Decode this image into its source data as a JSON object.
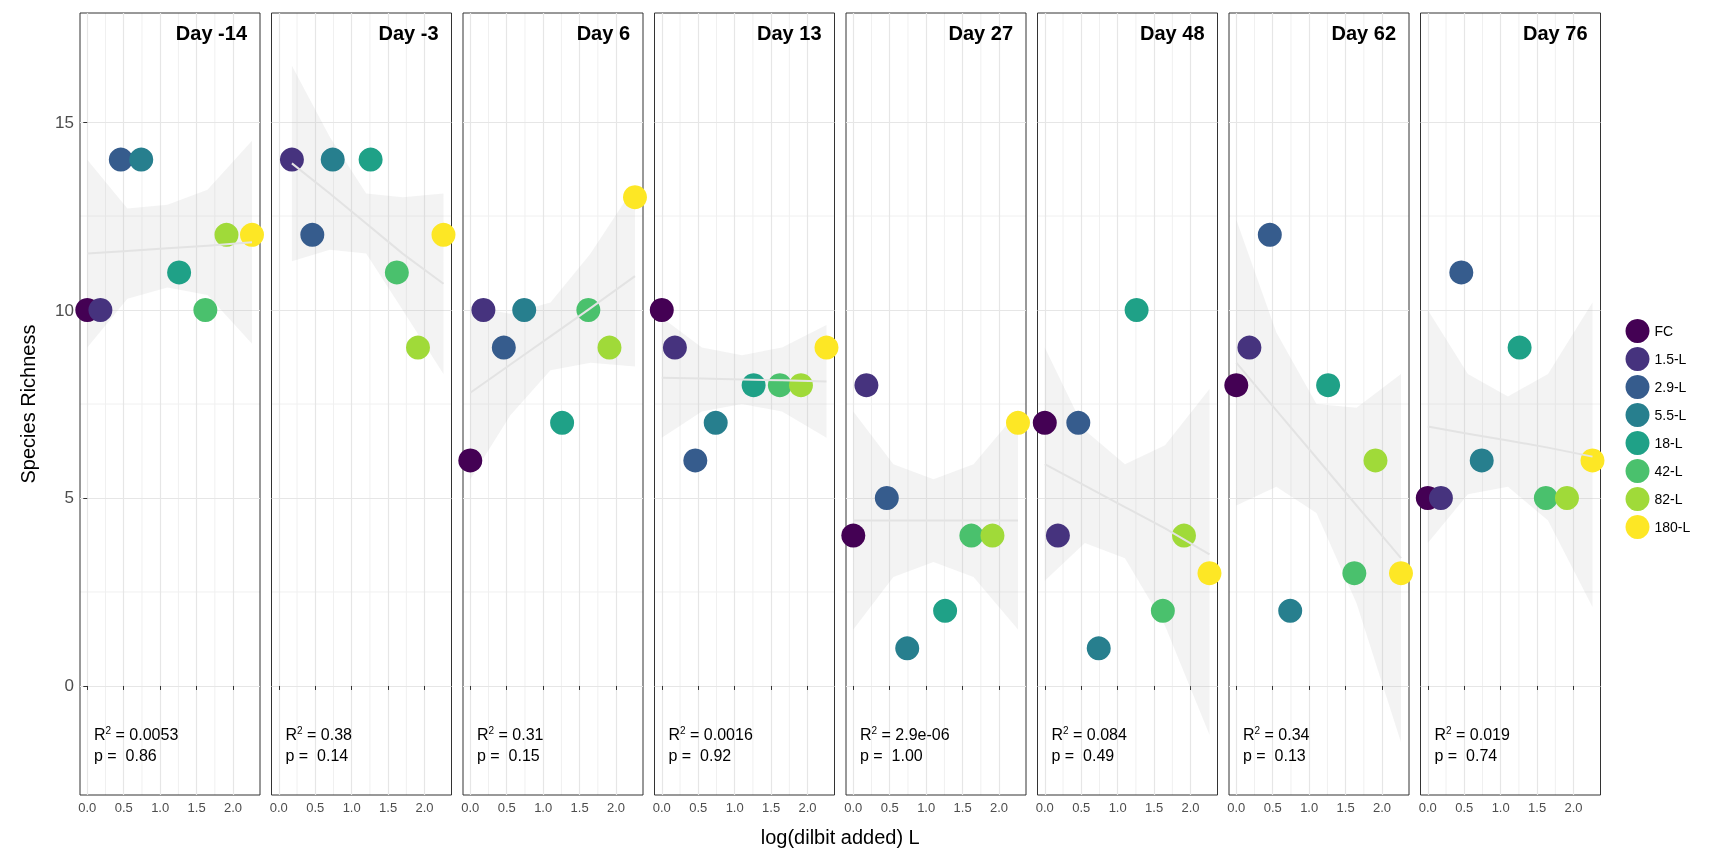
{
  "chart_data": [
    {
      "type": "scatter",
      "title": "Day -14",
      "ylabel": "Species Richness",
      "annotations": [
        "R$^{2}$ = 0.0053",
        "p =  0.86"
      ],
      "xlim": [
        -0.1,
        2.37
      ],
      "ylim": [
        -2.9,
        17.9
      ],
      "xticks": [
        {
          "value": 0,
          "label": "0.0"
        },
        {
          "value": 0.5,
          "label": "0.5"
        },
        {
          "value": 1,
          "label": "1.0"
        },
        {
          "value": 1.5,
          "label": "1.5"
        },
        {
          "value": 2,
          "label": "2.0"
        }
      ],
      "yticks": [
        0,
        5,
        10,
        15
      ],
      "grid": true,
      "marker": "circle",
      "series": [
        {
          "color": "#440154",
          "x": [
            0
          ],
          "values": [
            10
          ]
        },
        {
          "color": "#46337e",
          "x": [
            0.18
          ],
          "values": [
            10
          ]
        },
        {
          "color": "#365c8d",
          "x": [
            0.46
          ],
          "values": [
            14
          ]
        },
        {
          "color": "#277f8e",
          "x": [
            0.74
          ],
          "values": [
            14
          ]
        },
        {
          "color": "#1fa187",
          "x": [
            1.26
          ],
          "values": [
            11
          ]
        },
        {
          "color": "#4ac16d",
          "x": [
            1.62
          ],
          "values": [
            10
          ]
        },
        {
          "color": "#a0da39",
          "x": [
            1.91
          ],
          "values": [
            12
          ]
        },
        {
          "color": "#fde725",
          "x": [
            2.26
          ],
          "values": [
            12
          ]
        },
        {
          "type": "line",
          "marker": "none",
          "color": "#e3e3e3",
          "x": [
            0,
            0.55,
            1.1,
            1.65,
            2.26
          ],
          "values": [
            11.5,
            11.57,
            11.64,
            11.71,
            11.8
          ],
          "lower": [
            9.0,
            10.3,
            10.6,
            10.4,
            9.1
          ],
          "upper": [
            14.0,
            12.7,
            12.8,
            13.2,
            14.5
          ]
        }
      ]
    },
    {
      "type": "scatter",
      "title": "Day -3",
      "annotations": [
        "R$^{2}$ = 0.38",
        "p =  0.14"
      ],
      "xlim": [
        -0.1,
        2.37
      ],
      "ylim": [
        -2.9,
        17.9
      ],
      "xticks": [
        {
          "value": 0,
          "label": "0.0"
        },
        {
          "value": 0.5,
          "label": "0.5"
        },
        {
          "value": 1,
          "label": "1.0"
        },
        {
          "value": 1.5,
          "label": "1.5"
        },
        {
          "value": 2,
          "label": "2.0"
        }
      ],
      "yticks": [
        0,
        5,
        10,
        15
      ],
      "tick_labels": "x",
      "grid": true,
      "marker": "circle",
      "series": [
        {
          "color": "#46337e",
          "x": [
            0.18
          ],
          "values": [
            14
          ]
        },
        {
          "color": "#365c8d",
          "x": [
            0.46
          ],
          "values": [
            12
          ]
        },
        {
          "color": "#277f8e",
          "x": [
            0.74
          ],
          "values": [
            14
          ]
        },
        {
          "color": "#1fa187",
          "x": [
            1.26
          ],
          "values": [
            14
          ]
        },
        {
          "color": "#4ac16d",
          "x": [
            1.62
          ],
          "values": [
            11
          ]
        },
        {
          "color": "#a0da39",
          "x": [
            1.91
          ],
          "values": [
            9
          ]
        },
        {
          "color": "#fde725",
          "x": [
            2.26
          ],
          "values": [
            12
          ]
        },
        {
          "type": "line",
          "marker": "none",
          "color": "#e3e3e3",
          "x": [
            0.18,
            0.7,
            1.2,
            1.7,
            2.26
          ],
          "values": [
            13.9,
            13.1,
            12.3,
            11.5,
            10.7
          ],
          "lower": [
            11.3,
            11.6,
            11.5,
            10.0,
            8.3
          ],
          "upper": [
            16.5,
            14.6,
            13.1,
            13.0,
            13.1
          ]
        }
      ]
    },
    {
      "type": "scatter",
      "title": "Day 6",
      "annotations": [
        "R$^{2}$ = 0.31",
        "p =  0.15"
      ],
      "xlim": [
        -0.1,
        2.37
      ],
      "ylim": [
        -2.9,
        17.9
      ],
      "xticks": [
        {
          "value": 0,
          "label": "0.0"
        },
        {
          "value": 0.5,
          "label": "0.5"
        },
        {
          "value": 1,
          "label": "1.0"
        },
        {
          "value": 1.5,
          "label": "1.5"
        },
        {
          "value": 2,
          "label": "2.0"
        }
      ],
      "yticks": [
        0,
        5,
        10,
        15
      ],
      "tick_labels": "x",
      "grid": true,
      "marker": "circle",
      "series": [
        {
          "color": "#440154",
          "x": [
            0
          ],
          "values": [
            6
          ]
        },
        {
          "color": "#46337e",
          "x": [
            0.18
          ],
          "values": [
            10
          ]
        },
        {
          "color": "#365c8d",
          "x": [
            0.46
          ],
          "values": [
            9
          ]
        },
        {
          "color": "#277f8e",
          "x": [
            0.74
          ],
          "values": [
            10
          ]
        },
        {
          "color": "#1fa187",
          "x": [
            1.26
          ],
          "values": [
            7
          ]
        },
        {
          "color": "#4ac16d",
          "x": [
            1.62
          ],
          "values": [
            10
          ]
        },
        {
          "color": "#a0da39",
          "x": [
            1.91
          ],
          "values": [
            9
          ]
        },
        {
          "color": "#fde725",
          "x": [
            2.26
          ],
          "values": [
            13
          ]
        },
        {
          "type": "line",
          "marker": "none",
          "color": "#e3e3e3",
          "x": [
            0,
            0.55,
            1.1,
            1.65,
            2.26
          ],
          "values": [
            7.8,
            8.55,
            9.3,
            10.05,
            10.9
          ],
          "lower": [
            5.5,
            7.2,
            8.4,
            8.6,
            8.5
          ],
          "upper": [
            10.1,
            9.9,
            10.2,
            11.5,
            13.3
          ]
        }
      ]
    },
    {
      "type": "scatter",
      "title": "Day 13",
      "xlabel": "log(dilbit added) L",
      "annotations": [
        "R$^{2}$ = 0.0016",
        "p =  0.92"
      ],
      "xlim": [
        -0.1,
        2.37
      ],
      "ylim": [
        -2.9,
        17.9
      ],
      "xticks": [
        {
          "value": 0,
          "label": "0.0"
        },
        {
          "value": 0.5,
          "label": "0.5"
        },
        {
          "value": 1,
          "label": "1.0"
        },
        {
          "value": 1.5,
          "label": "1.5"
        },
        {
          "value": 2,
          "label": "2.0"
        }
      ],
      "yticks": [
        0,
        5,
        10,
        15
      ],
      "tick_labels": "x",
      "grid": true,
      "marker": "circle",
      "series": [
        {
          "color": "#440154",
          "x": [
            0
          ],
          "values": [
            10
          ]
        },
        {
          "color": "#46337e",
          "x": [
            0.18
          ],
          "values": [
            9
          ]
        },
        {
          "color": "#365c8d",
          "x": [
            0.46
          ],
          "values": [
            6
          ]
        },
        {
          "color": "#277f8e",
          "x": [
            0.74
          ],
          "values": [
            7
          ]
        },
        {
          "color": "#1fa187",
          "x": [
            1.26
          ],
          "values": [
            8
          ]
        },
        {
          "color": "#4ac16d",
          "x": [
            1.62
          ],
          "values": [
            8
          ]
        },
        {
          "color": "#a0da39",
          "x": [
            1.91
          ],
          "values": [
            8
          ]
        },
        {
          "color": "#fde725",
          "x": [
            2.26
          ],
          "values": [
            9
          ]
        },
        {
          "type": "line",
          "marker": "none",
          "color": "#e3e3e3",
          "x": [
            0,
            0.55,
            1.1,
            1.65,
            2.26
          ],
          "values": [
            8.2,
            8.18,
            8.15,
            8.13,
            8.1
          ],
          "lower": [
            6.6,
            7.3,
            7.5,
            7.3,
            6.6
          ],
          "upper": [
            9.8,
            9.0,
            8.8,
            9.0,
            9.6
          ]
        }
      ]
    },
    {
      "type": "scatter",
      "title": "Day 27",
      "annotations": [
        "R$^{2}$ = 2.9e-06",
        "p =  1.00"
      ],
      "xlim": [
        -0.1,
        2.37
      ],
      "ylim": [
        -2.9,
        17.9
      ],
      "xticks": [
        {
          "value": 0,
          "label": "0.0"
        },
        {
          "value": 0.5,
          "label": "0.5"
        },
        {
          "value": 1,
          "label": "1.0"
        },
        {
          "value": 1.5,
          "label": "1.5"
        },
        {
          "value": 2,
          "label": "2.0"
        }
      ],
      "yticks": [
        0,
        5,
        10,
        15
      ],
      "tick_labels": "x",
      "grid": true,
      "marker": "circle",
      "series": [
        {
          "color": "#440154",
          "x": [
            0
          ],
          "values": [
            4
          ]
        },
        {
          "color": "#46337e",
          "x": [
            0.18
          ],
          "values": [
            8
          ]
        },
        {
          "color": "#365c8d",
          "x": [
            0.46
          ],
          "values": [
            5
          ]
        },
        {
          "color": "#277f8e",
          "x": [
            0.74
          ],
          "values": [
            1
          ]
        },
        {
          "color": "#1fa187",
          "x": [
            1.26
          ],
          "values": [
            2
          ]
        },
        {
          "color": "#4ac16d",
          "x": [
            1.62
          ],
          "values": [
            4
          ]
        },
        {
          "color": "#a0da39",
          "x": [
            1.91
          ],
          "values": [
            4
          ]
        },
        {
          "color": "#fde725",
          "x": [
            2.26
          ],
          "values": [
            7
          ]
        },
        {
          "type": "line",
          "marker": "none",
          "color": "#e3e3e3",
          "x": [
            0,
            0.55,
            1.1,
            1.65,
            2.26
          ],
          "values": [
            4.4,
            4.4,
            4.4,
            4.4,
            4.4
          ],
          "lower": [
            1.5,
            2.9,
            3.3,
            2.9,
            1.5
          ],
          "upper": [
            7.3,
            5.9,
            5.5,
            5.9,
            7.3
          ]
        }
      ]
    },
    {
      "type": "scatter",
      "title": "Day 48",
      "annotations": [
        "R$^{2}$ = 0.084",
        "p =  0.49"
      ],
      "xlim": [
        -0.1,
        2.37
      ],
      "ylim": [
        -2.9,
        17.9
      ],
      "xticks": [
        {
          "value": 0,
          "label": "0.0"
        },
        {
          "value": 0.5,
          "label": "0.5"
        },
        {
          "value": 1,
          "label": "1.0"
        },
        {
          "value": 1.5,
          "label": "1.5"
        },
        {
          "value": 2,
          "label": "2.0"
        }
      ],
      "yticks": [
        0,
        5,
        10,
        15
      ],
      "tick_labels": "x",
      "grid": true,
      "marker": "circle",
      "series": [
        {
          "color": "#440154",
          "x": [
            0
          ],
          "values": [
            7
          ]
        },
        {
          "color": "#46337e",
          "x": [
            0.18
          ],
          "values": [
            4
          ]
        },
        {
          "color": "#365c8d",
          "x": [
            0.46
          ],
          "values": [
            7
          ]
        },
        {
          "color": "#277f8e",
          "x": [
            0.74
          ],
          "values": [
            1
          ]
        },
        {
          "color": "#1fa187",
          "x": [
            1.26
          ],
          "values": [
            10
          ]
        },
        {
          "color": "#4ac16d",
          "x": [
            1.62
          ],
          "values": [
            2
          ]
        },
        {
          "color": "#a0da39",
          "x": [
            1.91
          ],
          "values": [
            4
          ]
        },
        {
          "color": "#fde725",
          "x": [
            2.26
          ],
          "values": [
            3
          ]
        },
        {
          "type": "line",
          "marker": "none",
          "color": "#e3e3e3",
          "x": [
            0,
            0.55,
            1.1,
            1.65,
            2.26
          ],
          "values": [
            5.9,
            5.33,
            4.76,
            4.19,
            3.5
          ],
          "lower": [
            2.8,
            3.8,
            3.4,
            1.6,
            -1.3
          ],
          "upper": [
            9.0,
            6.8,
            5.9,
            6.4,
            7.9
          ]
        }
      ]
    },
    {
      "type": "scatter",
      "title": "Day 62",
      "annotations": [
        "R$^{2}$ = 0.34",
        "p =  0.13"
      ],
      "xlim": [
        -0.1,
        2.37
      ],
      "ylim": [
        -2.9,
        17.9
      ],
      "xticks": [
        {
          "value": 0,
          "label": "0.0"
        },
        {
          "value": 0.5,
          "label": "0.5"
        },
        {
          "value": 1,
          "label": "1.0"
        },
        {
          "value": 1.5,
          "label": "1.5"
        },
        {
          "value": 2,
          "label": "2.0"
        }
      ],
      "yticks": [
        0,
        5,
        10,
        15
      ],
      "tick_labels": "x",
      "grid": true,
      "marker": "circle",
      "series": [
        {
          "color": "#440154",
          "x": [
            0
          ],
          "values": [
            8
          ]
        },
        {
          "color": "#46337e",
          "x": [
            0.18
          ],
          "values": [
            9
          ]
        },
        {
          "color": "#365c8d",
          "x": [
            0.46
          ],
          "values": [
            12
          ]
        },
        {
          "color": "#277f8e",
          "x": [
            0.74
          ],
          "values": [
            2
          ]
        },
        {
          "color": "#1fa187",
          "x": [
            1.26
          ],
          "values": [
            8
          ]
        },
        {
          "color": "#4ac16d",
          "x": [
            1.62
          ],
          "values": [
            3
          ]
        },
        {
          "color": "#a0da39",
          "x": [
            1.91
          ],
          "values": [
            6
          ]
        },
        {
          "color": "#fde725",
          "x": [
            2.26
          ],
          "values": [
            3
          ]
        },
        {
          "type": "line",
          "marker": "none",
          "color": "#e3e3e3",
          "x": [
            0,
            0.55,
            1.1,
            1.65,
            2.26
          ],
          "values": [
            8.6,
            7.33,
            6.07,
            4.8,
            3.4
          ],
          "lower": [
            4.8,
            5.3,
            4.6,
            2.2,
            -1.5
          ],
          "upper": [
            12.4,
            9.4,
            7.5,
            7.4,
            8.3
          ]
        }
      ]
    },
    {
      "type": "scatter",
      "title": "Day 76",
      "annotations": [
        "R$^{2}$ = 0.019",
        "p =  0.74"
      ],
      "xlim": [
        -0.1,
        2.37
      ],
      "ylim": [
        -2.9,
        17.9
      ],
      "xticks": [
        {
          "value": 0,
          "label": "0.0"
        },
        {
          "value": 0.5,
          "label": "0.5"
        },
        {
          "value": 1,
          "label": "1.0"
        },
        {
          "value": 1.5,
          "label": "1.5"
        },
        {
          "value": 2,
          "label": "2.0"
        }
      ],
      "yticks": [
        0,
        5,
        10,
        15
      ],
      "tick_labels": "x",
      "grid": true,
      "marker": "circle",
      "legend": "right",
      "series": [
        {
          "name": "FC",
          "color": "#440154",
          "x": [
            0
          ],
          "values": [
            5
          ]
        },
        {
          "name": "1.5-L",
          "color": "#46337e",
          "x": [
            0.18
          ],
          "values": [
            5
          ]
        },
        {
          "name": "2.9-L",
          "color": "#365c8d",
          "x": [
            0.46
          ],
          "values": [
            11
          ]
        },
        {
          "name": "5.5-L",
          "color": "#277f8e",
          "x": [
            0.74
          ],
          "values": [
            6
          ]
        },
        {
          "name": "18-L",
          "color": "#1fa187",
          "x": [
            1.26
          ],
          "values": [
            9
          ]
        },
        {
          "name": "42-L",
          "color": "#4ac16d",
          "x": [
            1.62
          ],
          "values": [
            5
          ]
        },
        {
          "name": "82-L",
          "color": "#a0da39",
          "x": [
            1.91
          ],
          "values": [
            5
          ]
        },
        {
          "name": "180-L",
          "color": "#fde725",
          "x": [
            2.26
          ],
          "values": [
            6
          ]
        },
        {
          "type": "line",
          "marker": "none",
          "color": "#e3e3e3",
          "x": [
            0,
            0.55,
            1.1,
            1.65,
            2.26
          ],
          "values": [
            6.9,
            6.71,
            6.53,
            6.34,
            6.1
          ],
          "lower": [
            3.8,
            5.1,
            5.3,
            4.4,
            2.1
          ],
          "upper": [
            10.0,
            8.3,
            7.7,
            8.3,
            10.2
          ]
        }
      ]
    }
  ]
}
